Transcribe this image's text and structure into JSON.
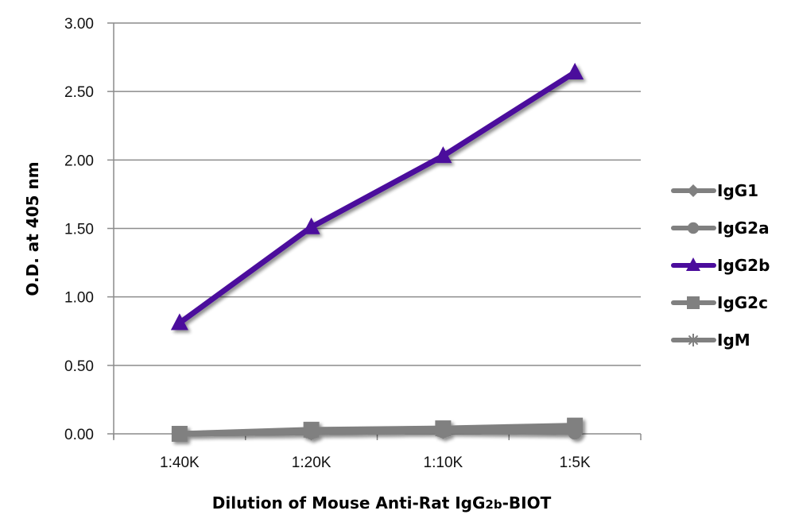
{
  "chart_data": {
    "type": "line",
    "title": "",
    "xlabel": "Dilution of Mouse Anti-Rat IgG2b-BIOT",
    "xlabel_parts": {
      "pre": "Dilution of Mouse Anti-Rat IgG",
      "sub": "2b",
      "post": "-BIOT"
    },
    "ylabel": "O.D. at 405 nm",
    "categories": [
      "1:40K",
      "1:20K",
      "1:10K",
      "1:5K"
    ],
    "ylim": [
      0,
      3.0
    ],
    "yticks": [
      "0.00",
      "0.50",
      "1.00",
      "1.50",
      "2.00",
      "2.50",
      "3.00"
    ],
    "grid": true,
    "legend_position": "right",
    "series": [
      {
        "name": "IgG1",
        "marker": "diamond",
        "color": "#808080",
        "values": [
          0.0,
          0.01,
          0.02,
          0.02
        ]
      },
      {
        "name": "IgG2a",
        "marker": "circle",
        "color": "#808080",
        "values": [
          0.0,
          0.01,
          0.02,
          0.01
        ]
      },
      {
        "name": "IgG2b",
        "marker": "triangle",
        "color": "#4B0C9C",
        "values": [
          0.81,
          1.51,
          2.03,
          2.64
        ]
      },
      {
        "name": "IgG2c",
        "marker": "square",
        "color": "#808080",
        "values": [
          0.0,
          0.03,
          0.04,
          0.06
        ]
      },
      {
        "name": "IgM",
        "marker": "star",
        "color": "#808080",
        "values": [
          0.0,
          0.01,
          0.02,
          0.03
        ]
      }
    ]
  }
}
